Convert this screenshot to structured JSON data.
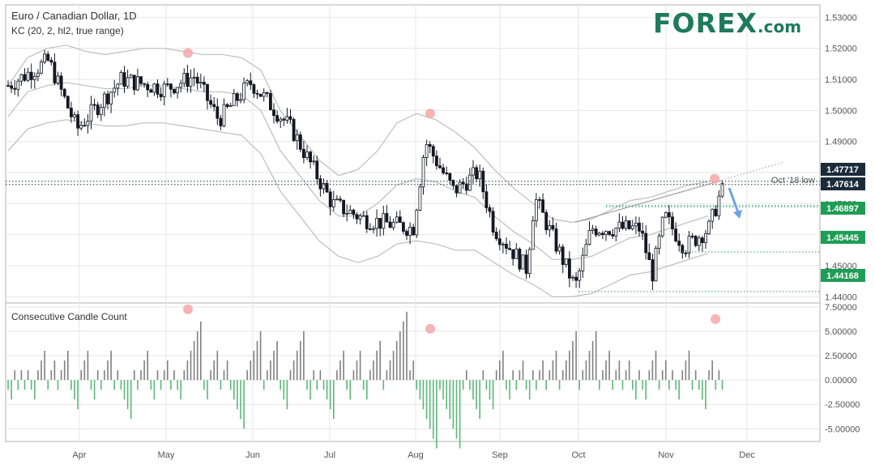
{
  "header": {
    "instrument": "Euro / Canadian Dollar, 1D",
    "indicator": "KC (20, 2, hl2, true range)",
    "lower_title": "Consecutive Candle Count"
  },
  "logo": {
    "main": "FOREX",
    "suffix": ".com",
    "color": "#1e7a5a"
  },
  "colors": {
    "candle": "#131722",
    "channel": "#bdbdbd",
    "grid": "#e6e6e6",
    "level_box": "#1f9d55",
    "dark_box": "#1c2b3a",
    "dotted": "#2a9d70",
    "count_up": "#808080",
    "count_down": "#5bb879",
    "marker": "#f4a7a7",
    "arrow": "#6fa2e6"
  },
  "chart_data": [
    {
      "type": "candlestick",
      "title": "Euro / Canadian Dollar, 1D",
      "x_ticks": [
        "Apr",
        "May",
        "Jun",
        "Jul",
        "Aug",
        "Sep",
        "Oct",
        "Nov",
        "Dec"
      ],
      "y_ticks": [
        "1.53000",
        "1.52000",
        "1.51000",
        "1.50000",
        "1.49000",
        "1.48000",
        "1.47000",
        "1.46000",
        "1.45000",
        "1.44000"
      ],
      "ylim": [
        1.438,
        1.534
      ],
      "levels": [
        {
          "value": 1.47717,
          "label": "1.47717",
          "box": "dark"
        },
        {
          "value": 1.47614,
          "label": "1.47614",
          "box": "dark",
          "annotation": "Oct '18 low"
        },
        {
          "value": 1.46938,
          "label": "1.46938",
          "box": "none"
        },
        {
          "value": 1.46897,
          "label": "1.46897",
          "box": "green"
        },
        {
          "value": 1.45445,
          "label": "1.45445",
          "box": "green"
        },
        {
          "value": 1.44168,
          "label": "1.44168",
          "box": "green"
        }
      ],
      "keltner": {
        "mid": [
          1.498,
          1.506,
          1.508,
          1.509,
          1.508,
          1.507,
          1.507,
          1.508,
          1.508,
          1.507,
          1.506,
          1.506,
          1.505,
          1.5,
          1.487,
          1.479,
          1.471,
          1.466,
          1.466,
          1.47,
          1.476,
          1.478,
          1.477,
          1.474,
          1.472,
          1.466,
          1.461,
          1.457,
          1.452,
          1.452,
          1.453,
          1.456,
          1.459,
          1.46,
          1.462,
          1.464,
          1.466
        ],
        "upper": [
          1.508,
          1.517,
          1.52,
          1.521,
          1.519,
          1.518,
          1.519,
          1.52,
          1.52,
          1.519,
          1.518,
          1.518,
          1.517,
          1.513,
          1.5,
          1.492,
          1.484,
          1.479,
          1.481,
          1.487,
          1.496,
          1.499,
          1.497,
          1.493,
          1.488,
          1.481,
          1.475,
          1.47,
          1.465,
          1.464,
          1.465,
          1.468,
          1.471,
          1.472,
          1.474,
          1.476,
          1.477
        ],
        "lower": [
          1.487,
          1.494,
          1.496,
          1.497,
          1.496,
          1.495,
          1.495,
          1.496,
          1.496,
          1.495,
          1.494,
          1.493,
          1.492,
          1.486,
          1.474,
          1.466,
          1.458,
          1.453,
          1.451,
          1.453,
          1.457,
          1.458,
          1.457,
          1.455,
          1.455,
          1.451,
          1.447,
          1.444,
          1.44,
          1.44,
          1.441,
          1.444,
          1.447,
          1.448,
          1.45,
          1.452,
          1.454
        ]
      },
      "annotations": [
        "Oct '18 low"
      ]
    },
    {
      "type": "bar",
      "title": "Consecutive Candle Count",
      "y_ticks": [
        "7.50000",
        "5.00000",
        "2.50000",
        "0.00000",
        "-2.50000",
        "-5.00000"
      ],
      "ylim": [
        -6.3,
        7.9
      ],
      "markers": [
        {
          "value": 7
        },
        {
          "value": 5
        },
        {
          "value": 6
        }
      ]
    }
  ]
}
